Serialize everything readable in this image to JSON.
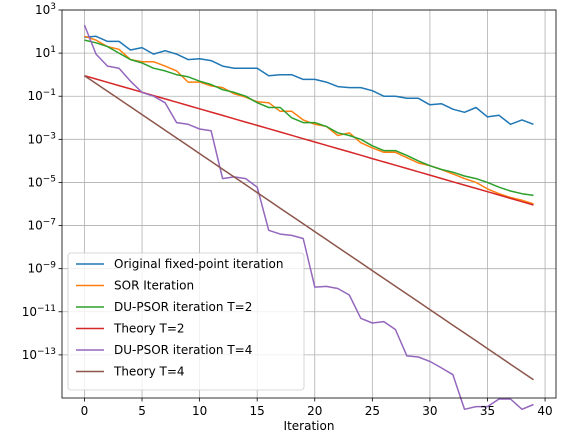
{
  "chart_data": {
    "type": "line",
    "title": "",
    "xlabel": "Iteration",
    "ylabel": "",
    "yscale": "log",
    "xlim": [
      -1.95,
      40.95
    ],
    "ylim": [
      1e-15,
      1000
    ],
    "xticks": [
      0,
      5,
      10,
      15,
      20,
      25,
      30,
      35,
      40
    ],
    "xtick_labels": [
      "0",
      "5",
      "10",
      "15",
      "20",
      "25",
      "30",
      "35",
      "40"
    ],
    "yticks": [
      1e-13,
      1e-11,
      1e-09,
      1e-07,
      1e-05,
      0.001,
      0.1,
      10,
      1000
    ],
    "ytick_labels": [
      {
        "base": "10",
        "exp": "−13"
      },
      {
        "base": "10",
        "exp": "−11"
      },
      {
        "base": "10",
        "exp": "−9"
      },
      {
        "base": "10",
        "exp": "−7"
      },
      {
        "base": "10",
        "exp": "−5"
      },
      {
        "base": "10",
        "exp": "−3"
      },
      {
        "base": "10",
        "exp": "−1"
      },
      {
        "base": "10",
        "exp": "1"
      },
      {
        "base": "10",
        "exp": "3"
      }
    ],
    "grid": true,
    "legend_position": "lower-left",
    "x": [
      0,
      1,
      2,
      3,
      4,
      5,
      6,
      7,
      8,
      9,
      10,
      11,
      12,
      13,
      14,
      15,
      16,
      17,
      18,
      19,
      20,
      21,
      22,
      23,
      24,
      25,
      26,
      27,
      28,
      29,
      30,
      31,
      32,
      33,
      34,
      35,
      36,
      37,
      38,
      39
    ],
    "series": [
      {
        "name": "Original fixed-point iteration",
        "color": "#1f77b4",
        "values": [
          55,
          60,
          35,
          35,
          14,
          18,
          9,
          13,
          9,
          5,
          5.5,
          4.5,
          2.5,
          2,
          2,
          2,
          0.9,
          1,
          1,
          0.6,
          0.6,
          0.45,
          0.28,
          0.25,
          0.25,
          0.18,
          0.1,
          0.1,
          0.08,
          0.08,
          0.04,
          0.045,
          0.025,
          0.018,
          0.03,
          0.011,
          0.013,
          0.005,
          0.008,
          0.005
        ]
      },
      {
        "name": "SOR Iteration",
        "color": "#ff7f0e",
        "values": [
          60,
          40,
          20,
          15,
          5,
          4,
          4,
          2.5,
          1.5,
          0.45,
          0.45,
          0.3,
          0.25,
          0.13,
          0.09,
          0.055,
          0.05,
          0.02,
          0.02,
          0.008,
          0.005,
          0.004,
          0.0015,
          0.002,
          0.0007,
          0.0004,
          0.00025,
          0.00025,
          0.00014,
          8e-05,
          6e-05,
          4e-05,
          2.5e-05,
          1.5e-05,
          1e-05,
          5e-06,
          3e-06,
          2e-06,
          1.5e-06,
          1e-06
        ]
      },
      {
        "name": "DU-PSOR iteration T=2",
        "color": "#2ca02c",
        "values": [
          40,
          30,
          20,
          10,
          5,
          3.5,
          2,
          1.5,
          1,
          0.8,
          0.5,
          0.35,
          0.2,
          0.15,
          0.1,
          0.05,
          0.03,
          0.03,
          0.01,
          0.006,
          0.006,
          0.004,
          0.002,
          0.0015,
          0.001,
          0.0005,
          0.0003,
          0.0003,
          0.00018,
          0.0001,
          6e-05,
          4e-05,
          3e-05,
          2e-05,
          1.5e-05,
          1e-05,
          6e-06,
          4e-06,
          3e-06,
          2.5e-06
        ]
      },
      {
        "name": "Theory T=2",
        "color": "#d62728",
        "values_generator": {
          "kind": "geometric",
          "start": 0.9,
          "end": 9e-07
        }
      },
      {
        "name": "DU-PSOR iteration T=4",
        "color": "#9467bd",
        "values": [
          200,
          9,
          2.5,
          2,
          0.5,
          0.15,
          0.1,
          0.05,
          0.006,
          0.005,
          0.003,
          0.0025,
          1.5e-05,
          1.8e-05,
          1.5e-05,
          6e-06,
          6e-08,
          4e-08,
          3.5e-08,
          2.5e-08,
          1.4e-10,
          1.5e-10,
          1.2e-10,
          6e-11,
          5e-12,
          3e-12,
          3.5e-12,
          1.5e-12,
          9e-14,
          8e-14,
          5e-14,
          2.5e-14,
          1.2e-14,
          3e-16,
          4e-16,
          4e-16,
          9e-16,
          9e-16,
          3e-16,
          5e-16
        ]
      },
      {
        "name": "Theory T=4",
        "color": "#8c564b",
        "values_generator": {
          "kind": "geometric",
          "start": 0.9,
          "end": 7e-15
        }
      }
    ]
  }
}
